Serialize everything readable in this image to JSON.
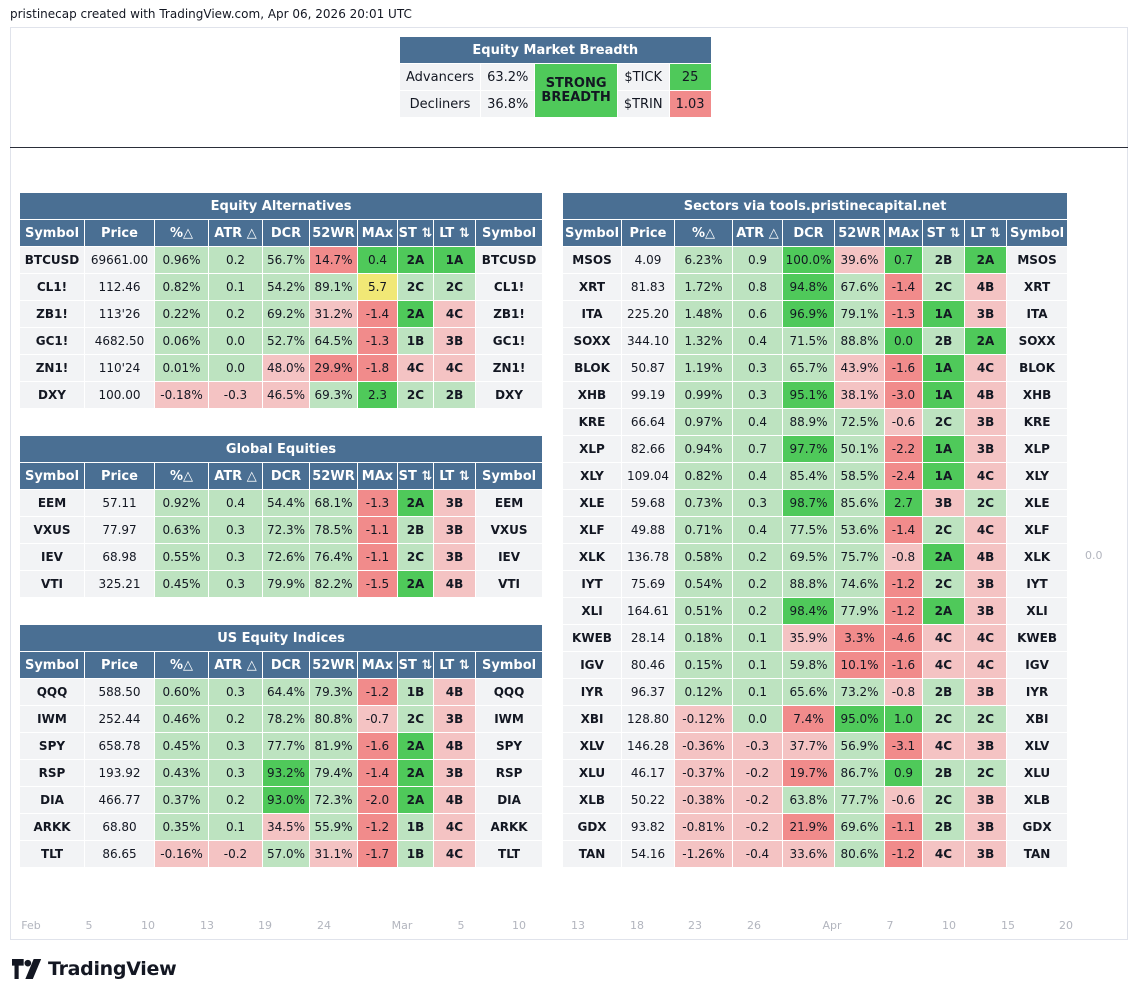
{
  "caption": "pristinecap created with TradingView.com, Apr 06, 2026 20:01 UTC",
  "brand": "TradingView",
  "right_scale_value": "0.0",
  "x_axis_labels": [
    "Feb",
    "5",
    "10",
    "13",
    "19",
    "24",
    "Mar",
    "5",
    "10",
    "13",
    "18",
    "23",
    "26",
    "Apr",
    "7",
    "10",
    "15",
    "20"
  ],
  "breadth": {
    "title": "Equity Market Breadth",
    "advancers_label": "Advancers",
    "advancers_value": "63.2%",
    "decliners_label": "Decliners",
    "decliners_value": "36.8%",
    "status_line1": "STRONG",
    "status_line2": "BREADTH",
    "tick_label": "$TICK",
    "tick_value": "25",
    "trin_label": "$TRIN",
    "trin_value": "1.03"
  },
  "columns": [
    "Symbol",
    "Price",
    "%△",
    "ATR △",
    "DCR",
    "52WR",
    "MAx",
    "ST ⇅",
    "LT ⇅",
    "Symbol"
  ],
  "colors": {
    "dark_green": "#4fc95a",
    "light_green": "#bde3c0",
    "dark_red": "#f18b8b",
    "light_red": "#f4c3c3",
    "yellow": "#f1e876",
    "header": "#4a6f93"
  },
  "left_sections": [
    {
      "title": "Equity Alternatives",
      "rows": [
        [
          "BTCUSD",
          "69661.00",
          "0.96%",
          "0.2",
          "56.7%",
          "14.7%",
          "0.4",
          "2A",
          "1A",
          "BTCUSD"
        ],
        [
          "CL1!",
          "112.46",
          "0.82%",
          "0.1",
          "54.2%",
          "89.1%",
          "5.7",
          "2C",
          "2C",
          "CL1!"
        ],
        [
          "ZB1!",
          "113'26",
          "0.22%",
          "0.2",
          "69.2%",
          "31.2%",
          "-1.4",
          "2A",
          "4C",
          "ZB1!"
        ],
        [
          "GC1!",
          "4682.50",
          "0.06%",
          "0.0",
          "52.7%",
          "64.5%",
          "-1.3",
          "1B",
          "3B",
          "GC1!"
        ],
        [
          "ZN1!",
          "110'24",
          "0.01%",
          "0.0",
          "48.0%",
          "29.9%",
          "-1.8",
          "4C",
          "4C",
          "ZN1!"
        ],
        [
          "DXY",
          "100.00",
          "-0.18%",
          "-0.3",
          "46.5%",
          "69.3%",
          "2.3",
          "2C",
          "2B",
          "DXY"
        ]
      ]
    },
    {
      "title": "Global Equities",
      "rows": [
        [
          "EEM",
          "57.11",
          "0.92%",
          "0.4",
          "54.4%",
          "68.1%",
          "-1.3",
          "2A",
          "3B",
          "EEM"
        ],
        [
          "VXUS",
          "77.97",
          "0.63%",
          "0.3",
          "72.3%",
          "78.5%",
          "-1.1",
          "2B",
          "3B",
          "VXUS"
        ],
        [
          "IEV",
          "68.98",
          "0.55%",
          "0.3",
          "72.6%",
          "76.4%",
          "-1.1",
          "2C",
          "3B",
          "IEV"
        ],
        [
          "VTI",
          "325.21",
          "0.45%",
          "0.3",
          "79.9%",
          "82.2%",
          "-1.5",
          "2A",
          "4B",
          "VTI"
        ]
      ]
    },
    {
      "title": "US Equity Indices",
      "rows": [
        [
          "QQQ",
          "588.50",
          "0.60%",
          "0.3",
          "64.4%",
          "79.3%",
          "-1.2",
          "1B",
          "4B",
          "QQQ"
        ],
        [
          "IWM",
          "252.44",
          "0.46%",
          "0.2",
          "78.2%",
          "80.8%",
          "-0.7",
          "2C",
          "3B",
          "IWM"
        ],
        [
          "SPY",
          "658.78",
          "0.45%",
          "0.3",
          "77.7%",
          "81.9%",
          "-1.6",
          "2A",
          "4B",
          "SPY"
        ],
        [
          "RSP",
          "193.92",
          "0.43%",
          "0.3",
          "93.2%",
          "79.4%",
          "-1.4",
          "2A",
          "3B",
          "RSP"
        ],
        [
          "DIA",
          "466.77",
          "0.37%",
          "0.2",
          "93.0%",
          "72.3%",
          "-2.0",
          "2A",
          "4B",
          "DIA"
        ],
        [
          "ARKK",
          "68.80",
          "0.35%",
          "0.1",
          "34.5%",
          "55.9%",
          "-1.2",
          "1B",
          "4C",
          "ARKK"
        ],
        [
          "TLT",
          "86.65",
          "-0.16%",
          "-0.2",
          "57.0%",
          "31.1%",
          "-1.7",
          "1B",
          "4C",
          "TLT"
        ]
      ]
    }
  ],
  "sectors": {
    "title": "Sectors via tools.pristinecapital.net",
    "rows": [
      [
        "MSOS",
        "4.09",
        "6.23%",
        "0.9",
        "100.0%",
        "39.6%",
        "0.7",
        "2B",
        "2A",
        "MSOS"
      ],
      [
        "XRT",
        "81.83",
        "1.72%",
        "0.8",
        "94.8%",
        "67.6%",
        "-1.4",
        "2C",
        "4B",
        "XRT"
      ],
      [
        "ITA",
        "225.20",
        "1.48%",
        "0.6",
        "96.9%",
        "79.1%",
        "-1.3",
        "1A",
        "3B",
        "ITA"
      ],
      [
        "SOXX",
        "344.10",
        "1.32%",
        "0.4",
        "71.5%",
        "88.8%",
        "0.0",
        "2B",
        "2A",
        "SOXX"
      ],
      [
        "BLOK",
        "50.87",
        "1.19%",
        "0.3",
        "65.7%",
        "43.9%",
        "-1.6",
        "1A",
        "4C",
        "BLOK"
      ],
      [
        "XHB",
        "99.19",
        "0.99%",
        "0.3",
        "95.1%",
        "38.1%",
        "-3.0",
        "1A",
        "4B",
        "XHB"
      ],
      [
        "KRE",
        "66.64",
        "0.97%",
        "0.4",
        "88.9%",
        "72.5%",
        "-0.6",
        "2C",
        "3B",
        "KRE"
      ],
      [
        "XLP",
        "82.66",
        "0.94%",
        "0.7",
        "97.7%",
        "50.1%",
        "-2.2",
        "1A",
        "3B",
        "XLP"
      ],
      [
        "XLY",
        "109.04",
        "0.82%",
        "0.4",
        "85.4%",
        "58.5%",
        "-2.4",
        "1A",
        "4C",
        "XLY"
      ],
      [
        "XLE",
        "59.68",
        "0.73%",
        "0.3",
        "98.7%",
        "85.6%",
        "2.7",
        "3B",
        "2C",
        "XLE"
      ],
      [
        "XLF",
        "49.88",
        "0.71%",
        "0.4",
        "77.5%",
        "53.6%",
        "-1.4",
        "2C",
        "4C",
        "XLF"
      ],
      [
        "XLK",
        "136.78",
        "0.58%",
        "0.2",
        "69.5%",
        "75.7%",
        "-0.8",
        "2A",
        "4B",
        "XLK"
      ],
      [
        "IYT",
        "75.69",
        "0.54%",
        "0.2",
        "88.8%",
        "74.6%",
        "-1.2",
        "2C",
        "3B",
        "IYT"
      ],
      [
        "XLI",
        "164.61",
        "0.51%",
        "0.2",
        "98.4%",
        "77.9%",
        "-1.2",
        "2A",
        "3B",
        "XLI"
      ],
      [
        "KWEB",
        "28.14",
        "0.18%",
        "0.1",
        "35.9%",
        "3.3%",
        "-4.6",
        "4C",
        "4C",
        "KWEB"
      ],
      [
        "IGV",
        "80.46",
        "0.15%",
        "0.1",
        "59.8%",
        "10.1%",
        "-1.6",
        "4C",
        "4C",
        "IGV"
      ],
      [
        "IYR",
        "96.37",
        "0.12%",
        "0.1",
        "65.6%",
        "73.2%",
        "-0.8",
        "2B",
        "3B",
        "IYR"
      ],
      [
        "XBI",
        "128.80",
        "-0.12%",
        "0.0",
        "7.4%",
        "95.0%",
        "1.0",
        "2C",
        "2C",
        "XBI"
      ],
      [
        "XLV",
        "146.28",
        "-0.36%",
        "-0.3",
        "37.7%",
        "56.9%",
        "-3.1",
        "4C",
        "3B",
        "XLV"
      ],
      [
        "XLU",
        "46.17",
        "-0.37%",
        "-0.2",
        "19.7%",
        "86.7%",
        "0.9",
        "2B",
        "2C",
        "XLU"
      ],
      [
        "XLB",
        "50.22",
        "-0.38%",
        "-0.2",
        "63.8%",
        "77.7%",
        "-0.6",
        "2C",
        "3B",
        "XLB"
      ],
      [
        "GDX",
        "93.82",
        "-0.81%",
        "-0.2",
        "21.9%",
        "69.6%",
        "-1.1",
        "2B",
        "3B",
        "GDX"
      ],
      [
        "TAN",
        "54.16",
        "-1.26%",
        "-0.4",
        "33.6%",
        "80.6%",
        "-1.2",
        "4C",
        "3B",
        "TAN"
      ]
    ]
  }
}
